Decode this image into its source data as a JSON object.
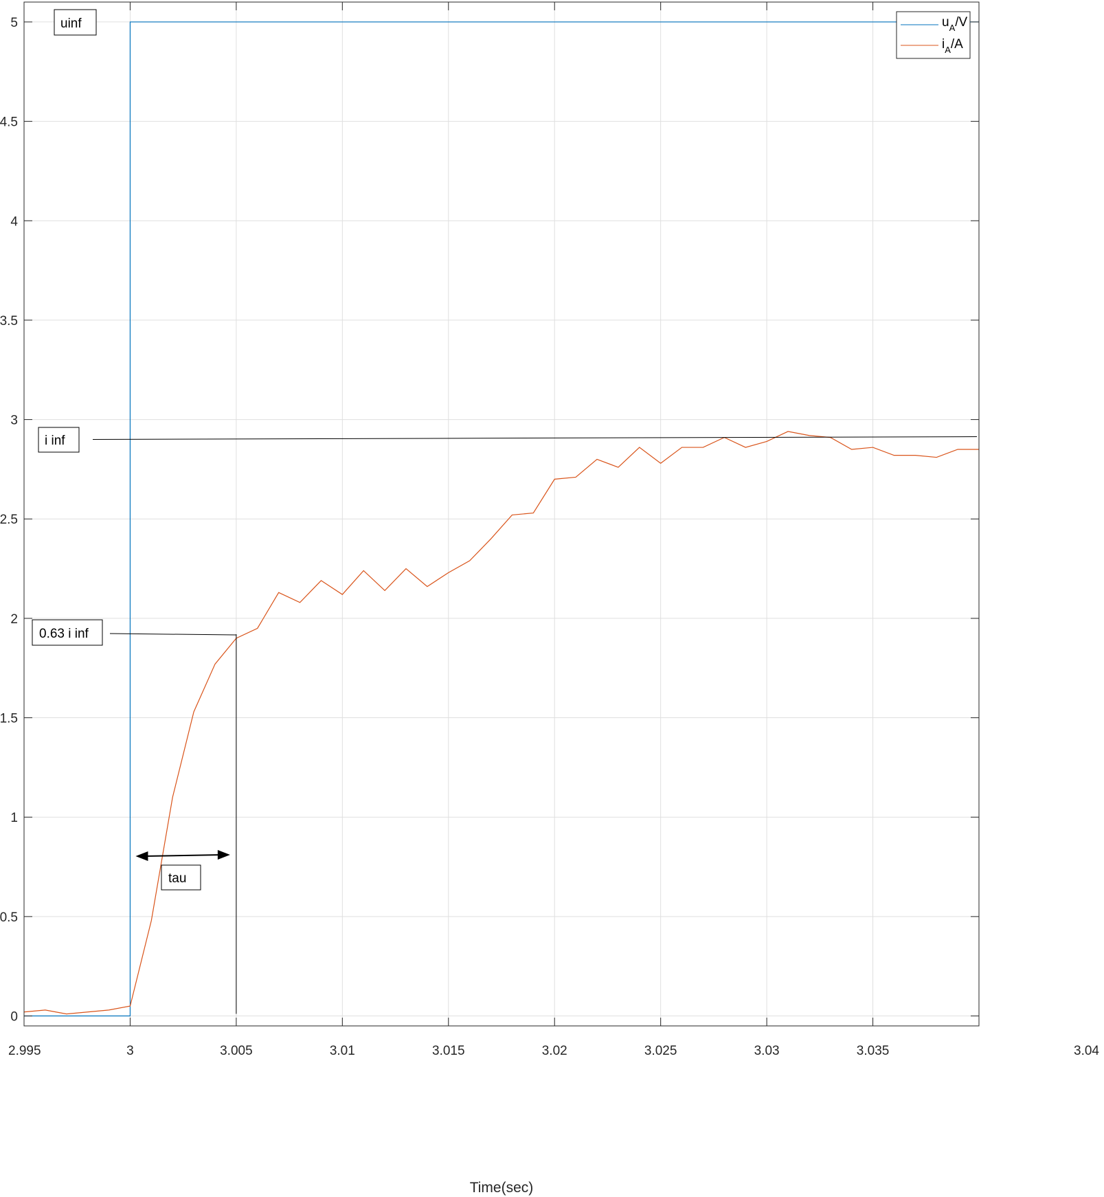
{
  "chart_data": {
    "type": "line",
    "xlabel": "Time(sec)",
    "ylabel": "",
    "xlim": [
      2.995,
      3.04
    ],
    "ylim": [
      -0.05,
      5.1
    ],
    "xticks": [
      2.995,
      3.0,
      3.005,
      3.01,
      3.015,
      3.02,
      3.025,
      3.03,
      3.035,
      3.04
    ],
    "xtick_labels": [
      "2.995",
      "3",
      "3.005",
      "3.01",
      "3.015",
      "3.02",
      "3.025",
      "3.03",
      "3.035",
      "3.04"
    ],
    "yticks": [
      0,
      0.5,
      1,
      1.5,
      2,
      2.5,
      3,
      3.5,
      4,
      4.5,
      5
    ],
    "ytick_labels": [
      "0",
      "0.5",
      "1",
      "1.5",
      "2",
      "2.5",
      "3",
      "3.5",
      "4",
      "4.5",
      "5"
    ],
    "grid": true,
    "legend_position": "top-right",
    "series": [
      {
        "name": "uA/V",
        "name_main": "u",
        "name_sub": "A",
        "name_unit": "/V",
        "color": "#0072BD",
        "x": [
          2.995,
          3.0,
          3.0,
          3.04
        ],
        "y": [
          0,
          0,
          5,
          5
        ]
      },
      {
        "name": "iA/A",
        "name_main": "i",
        "name_sub": "A",
        "name_unit": "/A",
        "color": "#D95319",
        "x": [
          2.995,
          2.996,
          2.997,
          2.998,
          2.999,
          3.0,
          3.001,
          3.002,
          3.003,
          3.004,
          3.005,
          3.006,
          3.007,
          3.008,
          3.009,
          3.01,
          3.011,
          3.012,
          3.013,
          3.014,
          3.015,
          3.016,
          3.017,
          3.018,
          3.019,
          3.02,
          3.021,
          3.022,
          3.023,
          3.024,
          3.025,
          3.026,
          3.027,
          3.028,
          3.029,
          3.03,
          3.031,
          3.032,
          3.033,
          3.034,
          3.035,
          3.036,
          3.037,
          3.038,
          3.039,
          3.04
        ],
        "y": [
          0.02,
          0.03,
          0.01,
          0.02,
          0.03,
          0.05,
          0.48,
          1.1,
          1.53,
          1.77,
          1.9,
          1.95,
          2.13,
          2.08,
          2.19,
          2.12,
          2.24,
          2.14,
          2.25,
          2.16,
          2.23,
          2.29,
          2.4,
          2.52,
          2.53,
          2.7,
          2.71,
          2.8,
          2.76,
          2.86,
          2.78,
          2.86,
          2.86,
          2.91,
          2.86,
          2.89,
          2.94,
          2.92,
          2.91,
          2.85,
          2.86,
          2.82,
          2.82,
          2.81,
          2.85,
          2.85
        ]
      }
    ],
    "annotations": {
      "uinf": {
        "text": "uinf"
      },
      "i_inf": {
        "text": "i inf",
        "y": 2.9
      },
      "i63": {
        "text": "0.63 i inf",
        "y": 1.92,
        "x": 3.005
      },
      "tau": {
        "text": "tau",
        "x_start": 3.0,
        "x_end": 3.005
      }
    }
  }
}
